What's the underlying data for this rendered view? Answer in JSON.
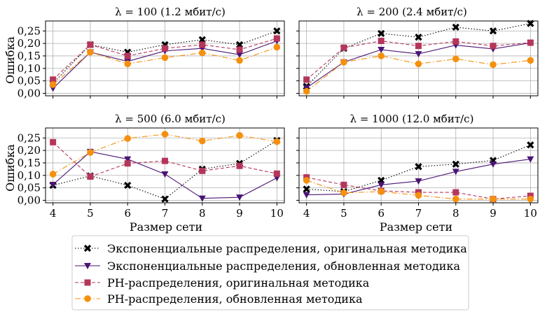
{
  "chart_data": [
    {
      "type": "line",
      "title": "λ = 100 (1.2 мбит/с)",
      "xlabel": "",
      "ylabel": "Ошибка",
      "x": [
        4,
        5,
        6,
        7,
        8,
        9,
        10
      ],
      "xlim": [
        3.8,
        10.2
      ],
      "ylim": [
        -0.01,
        0.29
      ],
      "grid": true,
      "series": [
        {
          "name": "Экспоненциальные распределения, оригинальная методика",
          "values": [
            0.04,
            0.195,
            0.165,
            0.195,
            0.215,
            0.195,
            0.25
          ]
        },
        {
          "name": "Экспоненциальные распределения, обновленная методика",
          "values": [
            0.02,
            0.165,
            0.128,
            0.17,
            0.18,
            0.155,
            0.21
          ]
        },
        {
          "name": "PH-распределения, оригинальная методика",
          "values": [
            0.055,
            0.195,
            0.15,
            0.18,
            0.195,
            0.175,
            0.22
          ]
        },
        {
          "name": "PH-распределения, обновленная методика",
          "values": [
            0.035,
            0.165,
            0.118,
            0.143,
            0.162,
            0.132,
            0.185
          ]
        }
      ]
    },
    {
      "type": "line",
      "title": "λ = 200 (2.4 мбит/с)",
      "xlabel": "",
      "ylabel": "",
      "x": [
        4,
        5,
        6,
        7,
        8,
        9,
        10
      ],
      "xlim": [
        3.8,
        10.2
      ],
      "ylim": [
        -0.01,
        0.29
      ],
      "grid": true,
      "series": [
        {
          "name": "Экспоненциальные распределения, оригинальная методика",
          "values": [
            0.028,
            0.18,
            0.24,
            0.225,
            0.265,
            0.25,
            0.28
          ]
        },
        {
          "name": "Экспоненциальные распределения, обновленная методика",
          "values": [
            0.022,
            0.125,
            0.175,
            0.158,
            0.193,
            0.178,
            0.202
          ]
        },
        {
          "name": "PH-распределения, оригинальная методика",
          "values": [
            0.055,
            0.183,
            0.21,
            0.19,
            0.208,
            0.19,
            0.203
          ]
        },
        {
          "name": "PH-распределения, обновленная методика",
          "values": [
            0.008,
            0.125,
            0.15,
            0.118,
            0.138,
            0.115,
            0.132
          ]
        }
      ]
    },
    {
      "type": "line",
      "title": "λ = 500 (6.0 мбит/с)",
      "xlabel": "Размер сети",
      "ylabel": "Ошибка",
      "x": [
        4,
        5,
        6,
        7,
        8,
        9,
        10
      ],
      "xlim": [
        3.8,
        10.2
      ],
      "ylim": [
        -0.01,
        0.29
      ],
      "grid": true,
      "series": [
        {
          "name": "Экспоненциальные распределения, оригинальная методика",
          "values": [
            0.06,
            0.098,
            0.06,
            0.005,
            0.125,
            0.148,
            0.24
          ]
        },
        {
          "name": "Экспоненциальные распределения, обновленная методика",
          "values": [
            0.063,
            0.195,
            0.165,
            0.105,
            0.008,
            0.012,
            0.09
          ]
        },
        {
          "name": "PH-распределения, оригинальная методика",
          "values": [
            0.233,
            0.095,
            0.148,
            0.158,
            0.118,
            0.138,
            0.107
          ]
        },
        {
          "name": "PH-распределения, обновленная методика",
          "values": [
            0.105,
            0.192,
            0.248,
            0.265,
            0.238,
            0.26,
            0.235
          ]
        }
      ]
    },
    {
      "type": "line",
      "title": "λ = 1000 (12.0 мбит/с)",
      "xlabel": "Размер сети",
      "ylabel": "",
      "x": [
        4,
        5,
        6,
        7,
        8,
        9,
        10
      ],
      "xlim": [
        3.8,
        10.2
      ],
      "ylim": [
        -0.01,
        0.29
      ],
      "grid": true,
      "series": [
        {
          "name": "Экспоненциальные распределения, оригинальная методика",
          "values": [
            0.045,
            0.035,
            0.08,
            0.135,
            0.145,
            0.16,
            0.222
          ]
        },
        {
          "name": "Экспоненциальные распределения, обновленная методика",
          "values": [
            0.022,
            0.025,
            0.062,
            0.077,
            0.115,
            0.145,
            0.165
          ]
        },
        {
          "name": "PH-распределения, оригинальная методика",
          "values": [
            0.092,
            0.062,
            0.038,
            0.032,
            0.032,
            0.005,
            0.018
          ]
        },
        {
          "name": "PH-распределения, обновленная методика",
          "values": [
            0.08,
            0.03,
            0.035,
            0.02,
            0.005,
            0.005,
            0.005
          ]
        }
      ]
    }
  ],
  "y_ticks": [
    "0,00",
    "0,05",
    "0,10",
    "0,15",
    "0,20",
    "0,25"
  ],
  "y_tick_values": [
    0,
    0.05,
    0.1,
    0.15,
    0.2,
    0.25
  ],
  "x_ticks": [
    "4",
    "5",
    "6",
    "7",
    "8",
    "9",
    "10"
  ],
  "legend": {
    "placement": "bottom-center",
    "entries": [
      {
        "label": "Экспоненциальные распределения, оригинальная методика",
        "marker": "x",
        "line": "dotted",
        "color": "#000000"
      },
      {
        "label": "Экспоненциальные распределения, обновленная методика",
        "marker": "triangle-down",
        "line": "solid",
        "color": "#4a1575"
      },
      {
        "label": "PH-распределения, оригинальная методика",
        "marker": "square",
        "line": "dashed",
        "color": "#b5365b"
      },
      {
        "label": "PH-распределения, обновленная методика",
        "marker": "circle",
        "line": "dashdot",
        "color": "#f5900f"
      }
    ]
  }
}
